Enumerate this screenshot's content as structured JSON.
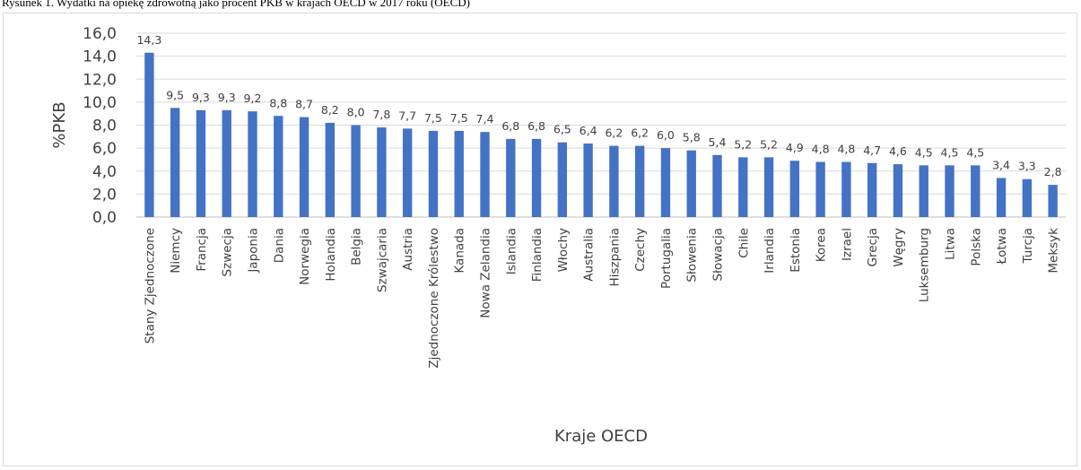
{
  "caption": "Rysunek 1. Wydatki na opiekę zdrowotną jako procent PKB w krajach OECD w 2017 roku (OECD)",
  "chart_data": {
    "type": "bar",
    "title": "",
    "xlabel": "Kraje OECD",
    "ylabel": "%PKB",
    "ylim": [
      0,
      16
    ],
    "yticks": [
      "0,0",
      "2,0",
      "4,0",
      "6,0",
      "8,0",
      "10,0",
      "12,0",
      "14,0",
      "16,0"
    ],
    "grid": true,
    "bar_color": "#4472c4",
    "categories": [
      "Stany Zjednoczone",
      "Niemcy",
      "Francja",
      "Szwecja",
      "Japonia",
      "Dania",
      "Norwegia",
      "Holandia",
      "Belgia",
      "Szwajcaria",
      "Austria",
      "Zjednoczone Królestwo",
      "Kanada",
      "Nowa Zelandia",
      "Islandia",
      "Finlandia",
      "Włochy",
      "Australia",
      "Hiszpania",
      "Czechy",
      "Portugalia",
      "Słowenia",
      "Słowacja",
      "Chile",
      "Irlandia",
      "Estonia",
      "Korea",
      "Izrael",
      "Grecja",
      "Węgry",
      "Luksemburg",
      "Litwa",
      "Polska",
      "Łotwa",
      "Turcja",
      "Meksyk"
    ],
    "values": [
      14.3,
      9.5,
      9.3,
      9.3,
      9.2,
      8.8,
      8.7,
      8.2,
      8.0,
      7.8,
      7.7,
      7.5,
      7.5,
      7.4,
      6.8,
      6.8,
      6.5,
      6.4,
      6.2,
      6.2,
      6.0,
      5.8,
      5.4,
      5.2,
      5.2,
      4.9,
      4.8,
      4.8,
      4.7,
      4.6,
      4.5,
      4.5,
      4.5,
      3.4,
      3.3,
      2.8
    ],
    "value_labels": [
      "14,3",
      "9,5",
      "9,3",
      "9,3",
      "9,2",
      "8,8",
      "8,7",
      "8,2",
      "8,0",
      "7,8",
      "7,7",
      "7,5",
      "7,5",
      "7,4",
      "6,8",
      "6,8",
      "6,5",
      "6,4",
      "6,2",
      "6,2",
      "6,0",
      "5,8",
      "5,4",
      "5,2",
      "5,2",
      "4,9",
      "4,8",
      "4,8",
      "4,7",
      "4,6",
      "4,5",
      "4,5",
      "4,5",
      "3,4",
      "3,3",
      "2,8"
    ]
  }
}
